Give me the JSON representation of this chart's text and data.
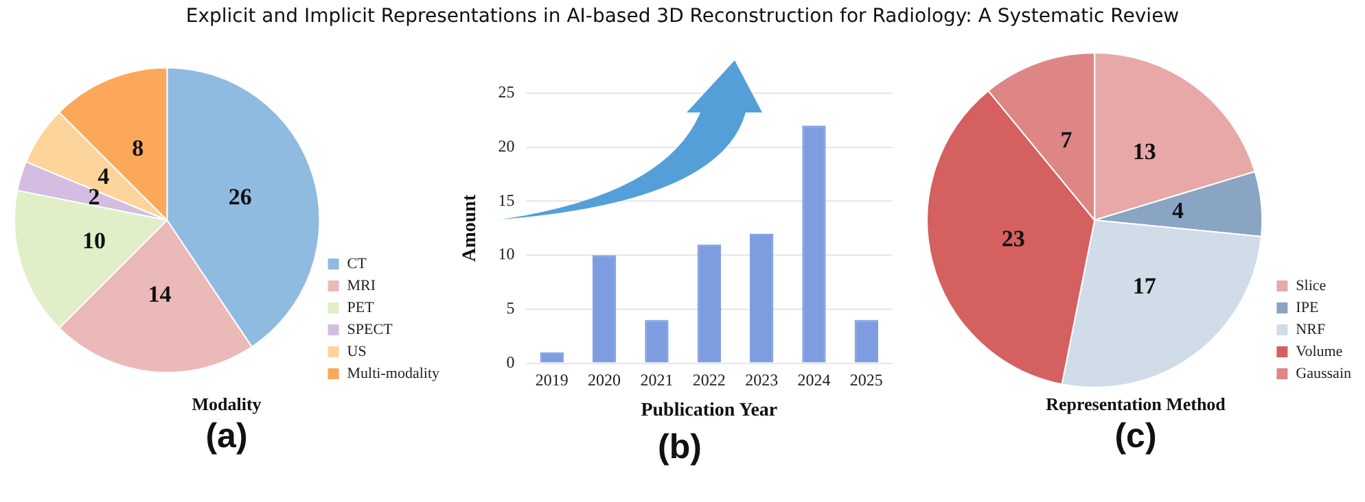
{
  "chart_data": [
    {
      "type": "pie",
      "title": "Explicit and Implicit Representations in AI-based 3D Reconstruction for Radiology: A Systematic Review",
      "categories": [
        "CT",
        "MRI",
        "PET",
        "SPECT",
        "US",
        "Multi-modality"
      ],
      "values": [
        26,
        14,
        10,
        2,
        4,
        8
      ],
      "colors": [
        "#8fbbe0",
        "#ecb9b9",
        "#e0efc8",
        "#d4bde0",
        "#fdd59a",
        "#fca85a"
      ],
      "data_labels": true,
      "legend": "bottom right",
      "annotations": [
        "Modality",
        "(a)"
      ]
    },
    {
      "type": "bar",
      "categories": [
        "2019",
        "2020",
        "2021",
        "2022",
        "2023",
        "2024",
        "2025"
      ],
      "values": [
        1,
        10,
        4,
        11,
        12,
        22,
        4
      ],
      "color": "#7d9de0",
      "ylim": [
        0,
        25
      ],
      "yticks": [
        0,
        5,
        10,
        15,
        20,
        25
      ],
      "grid": "y",
      "xlabel": "Publication Year",
      "ylabel": "Amount",
      "annotations": [
        "(b)"
      ]
    },
    {
      "type": "pie",
      "categories": [
        "Slice",
        "IPE",
        "NRF",
        "Volume",
        "Gaussain"
      ],
      "values": [
        13,
        4,
        17,
        23,
        7
      ],
      "colors": [
        "#e8a8a8",
        "#8aa4c4",
        "#d0dce8",
        "#d46060",
        "#de8686"
      ],
      "data_labels": true,
      "legend": "bottom right",
      "annotations": [
        "Representation Method",
        "(c)"
      ]
    }
  ]
}
